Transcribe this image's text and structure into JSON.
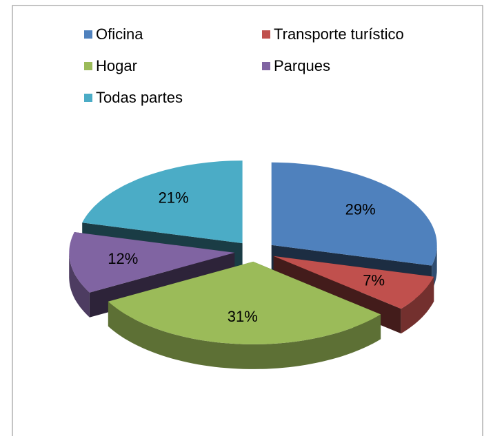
{
  "chart_data": {
    "type": "pie",
    "categories": [
      "Oficina",
      "Transporte turístico",
      "Hogar",
      "Parques",
      "Todas partes"
    ],
    "values": [
      29,
      7,
      31,
      12,
      21
    ],
    "value_labels": [
      "29%",
      "7%",
      "31%",
      "12%",
      "21%"
    ],
    "colors": [
      "#4f81bd",
      "#c0504d",
      "#9bbb59",
      "#8064a2",
      "#4bacc6"
    ],
    "legend": "top"
  }
}
